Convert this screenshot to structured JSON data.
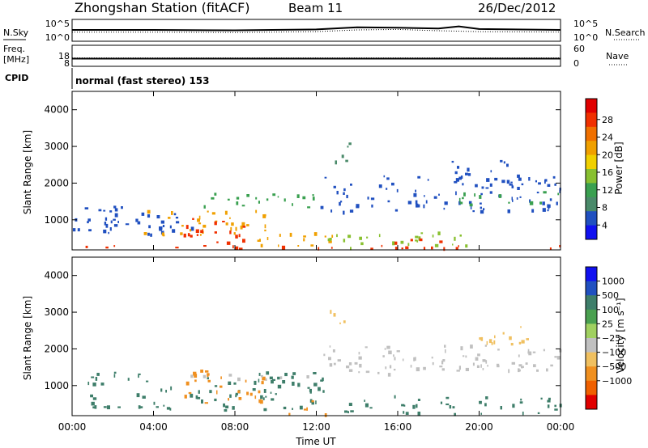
{
  "header": {
    "station": "Zhongshan Station (fitACF)",
    "beam": "Beam 11",
    "date": "26/Dec/2012"
  },
  "params": {
    "nsky_label": "N.Sky",
    "nsearch_label": "N.Search",
    "freq_label": "Freq.",
    "freq_unit": "[MHz]",
    "nave_label": "Nave",
    "cpid_label": "CPID",
    "cpid_text": "normal (fast stereo) 153",
    "noise_left_ticks": [
      "10^5",
      "10^0"
    ],
    "noise_right_ticks": [
      "10^5",
      "10^0"
    ],
    "freq_left_ticks": [
      "18",
      "8"
    ],
    "nave_right_ticks": [
      "60",
      "0"
    ]
  },
  "chart_data": [
    {
      "type": "heatmap",
      "name": "power",
      "ylabel": "Slant Range [km]",
      "xlabel": "",
      "xlim": [
        0,
        24
      ],
      "ylim": [
        180,
        4500
      ],
      "x_ticks": [
        "00:00",
        "04:00",
        "08:00",
        "12:00",
        "16:00",
        "20:00",
        "00:00"
      ],
      "y_ticks": [
        1000,
        2000,
        3000,
        4000
      ],
      "colorbar": {
        "label": "Power [dB]",
        "ticks": [
          4,
          8,
          12,
          16,
          20,
          24,
          28
        ],
        "colors": [
          "#1010f0",
          "#2050c0",
          "#4a8a6a",
          "#3aa050",
          "#88c030",
          "#f0d000",
          "#f0a000",
          "#f07000",
          "#f03000",
          "#e00000"
        ]
      },
      "regions": [
        {
          "t0": 0.0,
          "t1": 6.5,
          "r0": 500,
          "r1": 1400,
          "value": 7
        },
        {
          "t0": 3.5,
          "t1": 9.5,
          "r0": 550,
          "r1": 1250,
          "value": 21
        },
        {
          "t0": 5.0,
          "t1": 8.5,
          "r0": 350,
          "r1": 1050,
          "value": 27
        },
        {
          "t0": 6.0,
          "t1": 12.0,
          "r0": 1300,
          "r1": 1700,
          "value": 12
        },
        {
          "t0": 9.0,
          "t1": 13.0,
          "r0": 250,
          "r1": 800,
          "value": 20
        },
        {
          "t0": 12.5,
          "t1": 19.5,
          "r0": 200,
          "r1": 650,
          "value": 15
        },
        {
          "t0": 15.5,
          "t1": 18.5,
          "r0": 200,
          "r1": 500,
          "value": 27
        },
        {
          "t0": 12.0,
          "t1": 24.0,
          "r0": 1200,
          "r1": 2200,
          "value": 7
        },
        {
          "t0": 19.0,
          "t1": 24.0,
          "r0": 1400,
          "r1": 1750,
          "value": 12
        },
        {
          "t0": 12.5,
          "t1": 14.0,
          "r0": 2500,
          "r1": 3100,
          "value": 8
        },
        {
          "t0": 18.5,
          "t1": 22.0,
          "r0": 1900,
          "r1": 2600,
          "value": 6
        },
        {
          "t0": 0.0,
          "t1": 24.0,
          "r0": 180,
          "r1": 280,
          "value": 26
        }
      ]
    },
    {
      "type": "heatmap",
      "name": "velocity",
      "ylabel": "Slant Range [km]",
      "xlabel": "Time UT",
      "xlim": [
        0,
        24
      ],
      "ylim": [
        180,
        4500
      ],
      "x_ticks": [
        "00:00",
        "04:00",
        "08:00",
        "12:00",
        "16:00",
        "20:00",
        "00:00"
      ],
      "y_ticks": [
        1000,
        2000,
        3000,
        4000
      ],
      "colorbar": {
        "label": "Velocity [m s⁻¹]",
        "ticks": [
          "1000",
          "500",
          "100",
          "25",
          "−25",
          "−100",
          "−500",
          "−1000"
        ],
        "colors": [
          "#1010f0",
          "#2050c0",
          "#3e7e6a",
          "#4aa050",
          "#a0d060",
          "#c0c0c0",
          "#f0c060",
          "#f09020",
          "#f06000",
          "#e00000"
        ]
      },
      "regions": [
        {
          "t0": 0.0,
          "t1": 12.5,
          "r0": 300,
          "r1": 1350,
          "value": 100
        },
        {
          "t0": 5.5,
          "t1": 9.5,
          "r0": 500,
          "r1": 1400,
          "value": -150
        },
        {
          "t0": 5.0,
          "t1": 12.0,
          "r0": 1150,
          "r1": 1300,
          "value": 0
        },
        {
          "t0": 10.5,
          "t1": 12.5,
          "r0": 200,
          "r1": 700,
          "value": -120
        },
        {
          "t0": 12.5,
          "t1": 24.0,
          "r0": 200,
          "r1": 700,
          "value": 90
        },
        {
          "t0": 12.0,
          "t1": 24.0,
          "r0": 1300,
          "r1": 2100,
          "value": 0
        },
        {
          "t0": 19.0,
          "t1": 24.0,
          "r0": 1400,
          "r1": 1600,
          "value": 0
        },
        {
          "t0": 12.5,
          "t1": 14.0,
          "r0": 2600,
          "r1": 3100,
          "value": -90
        },
        {
          "t0": 19.5,
          "t1": 22.5,
          "r0": 2100,
          "r1": 2600,
          "value": -60
        }
      ]
    }
  ],
  "noise_data": {
    "nsky": [
      [
        0,
        2.6
      ],
      [
        4,
        2.6
      ],
      [
        8,
        2.5
      ],
      [
        12,
        2.7
      ],
      [
        14,
        3.2
      ],
      [
        16,
        3.1
      ],
      [
        18,
        2.9
      ],
      [
        19,
        3.4
      ],
      [
        20,
        2.8
      ],
      [
        24,
        2.6
      ]
    ],
    "nsearch": [
      [
        0,
        2.1
      ],
      [
        4,
        2.1
      ],
      [
        8,
        2.0
      ],
      [
        12,
        2.2
      ],
      [
        14,
        2.6
      ],
      [
        16,
        2.7
      ],
      [
        18,
        2.4
      ],
      [
        20,
        2.2
      ],
      [
        24,
        2.1
      ]
    ],
    "freq_mhz": 12,
    "nave": 22
  }
}
